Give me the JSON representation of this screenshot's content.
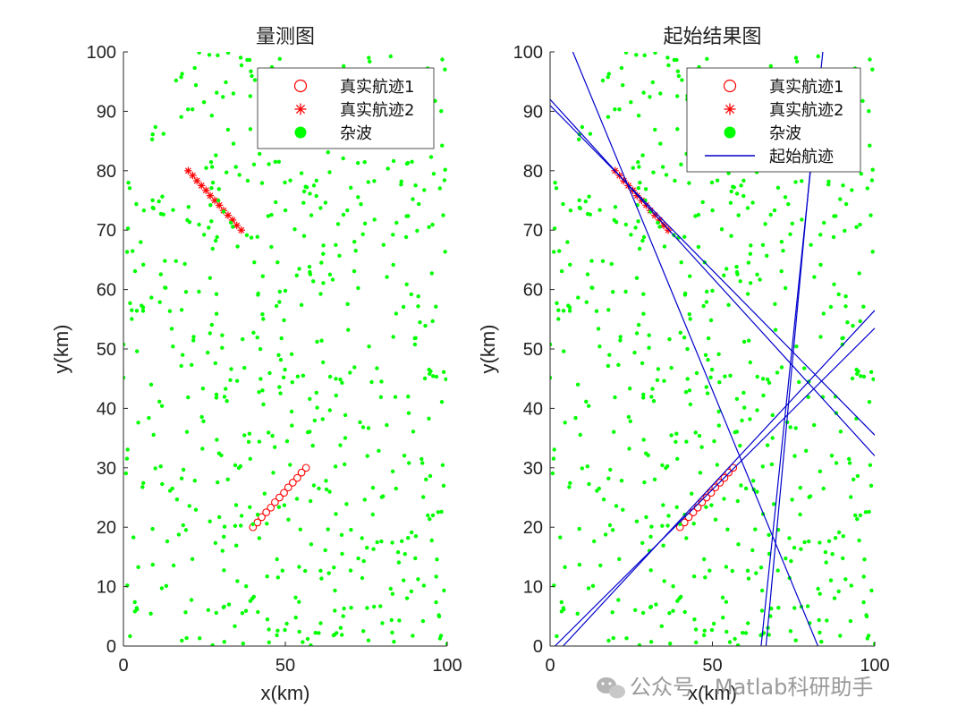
{
  "chart_data": [
    {
      "type": "scatter",
      "title": "量测图",
      "xlabel": "x(km)",
      "ylabel": "y(km)",
      "xlim": [
        0,
        100
      ],
      "ylim": [
        0,
        100
      ],
      "x_ticks": [
        "0",
        "50",
        "100"
      ],
      "y_ticks": [
        "0",
        "10",
        "20",
        "30",
        "40",
        "50",
        "60",
        "70",
        "80",
        "90",
        "100"
      ],
      "grid": false,
      "legend_position": "top-right",
      "legend": [
        "真实航迹1",
        "真实航迹2",
        "杂波"
      ],
      "series": [
        {
          "name": "真实航迹1",
          "marker": "circle",
          "color": "#ff0000",
          "x": [
            40,
            41.4,
            42.7,
            44.1,
            45.5,
            46.8,
            48.2,
            49.6,
            50.9,
            52.3,
            53.7,
            55,
            56.4
          ],
          "y": [
            20,
            20.8,
            21.7,
            22.5,
            23.3,
            24.2,
            25,
            25.8,
            26.7,
            27.5,
            28.3,
            29.2,
            30
          ]
        },
        {
          "name": "真实航迹2",
          "marker": "asterisk",
          "color": "#ff0000",
          "x": [
            20,
            21.4,
            22.7,
            24.1,
            25.5,
            26.8,
            28.2,
            29.6,
            30.9,
            32.3,
            33.7,
            35,
            36.4
          ],
          "y": [
            80,
            79.2,
            78.3,
            77.5,
            76.7,
            75.8,
            75,
            74.2,
            73.3,
            72.5,
            71.7,
            70.8,
            70
          ]
        },
        {
          "name": "杂波",
          "marker": "dot",
          "color": "#00ff00",
          "count": 600,
          "distribution": "uniform over 0-100 × 0-100"
        }
      ]
    },
    {
      "type": "scatter",
      "title": "起始结果图",
      "xlabel": "x(km)",
      "ylabel": "y(km)",
      "xlim": [
        0,
        100
      ],
      "ylim": [
        0,
        100
      ],
      "x_ticks": [
        "0",
        "50",
        "100"
      ],
      "y_ticks": [
        "0",
        "10",
        "20",
        "30",
        "40",
        "50",
        "60",
        "70",
        "80",
        "90",
        "100"
      ],
      "grid": false,
      "legend_position": "top-right",
      "legend": [
        "真实航迹1",
        "真实航迹2",
        "杂波",
        "起始航迹"
      ],
      "series": [
        {
          "name": "真实航迹1",
          "marker": "circle",
          "color": "#ff0000",
          "x": [
            40,
            41.4,
            42.7,
            44.1,
            45.5,
            46.8,
            48.2,
            49.6,
            50.9,
            52.3,
            53.7,
            55,
            56.4
          ],
          "y": [
            20,
            20.8,
            21.7,
            22.5,
            23.3,
            24.2,
            25,
            25.8,
            26.7,
            27.5,
            28.3,
            29.2,
            30
          ]
        },
        {
          "name": "真实航迹2",
          "marker": "asterisk",
          "color": "#ff0000",
          "x": [
            20,
            21.4,
            22.7,
            24.1,
            25.5,
            26.8,
            28.2,
            29.6,
            30.9,
            32.3,
            33.7,
            35,
            36.4
          ],
          "y": [
            80,
            79.2,
            78.3,
            77.5,
            76.7,
            75.8,
            75,
            74.2,
            73.3,
            72.5,
            71.7,
            70.8,
            70
          ]
        },
        {
          "name": "杂波",
          "marker": "dot",
          "color": "#00ff00",
          "count": 600,
          "distribution": "uniform over 0-100 × 0-100"
        },
        {
          "name": "起始航迹",
          "style": "line",
          "color": "#0000cc",
          "lines": [
            {
              "x": [
                0,
                100
              ],
              "y": [
                92,
                32
              ]
            },
            {
              "x": [
                0,
                100
              ],
              "y": [
                91,
                35.5
              ]
            },
            {
              "x": [
                7,
                82.5
              ],
              "y": [
                100,
                0
              ]
            },
            {
              "x": [
                4,
                100
              ],
              "y": [
                0,
                56.5
              ]
            },
            {
              "x": [
                1.5,
                100
              ],
              "y": [
                0,
                53.5
              ]
            },
            {
              "x": [
                65,
                84
              ],
              "y": [
                0,
                100
              ]
            },
            {
              "x": [
                66.5,
                83
              ],
              "y": [
                0,
                97
              ]
            }
          ]
        }
      ]
    }
  ],
  "watermark": {
    "text": "公众号 · Matlab科研助手"
  },
  "colors": {
    "track": "#ff0000",
    "clutter": "#00ff00",
    "initiation": "#0000cc",
    "axis": "#262626"
  }
}
